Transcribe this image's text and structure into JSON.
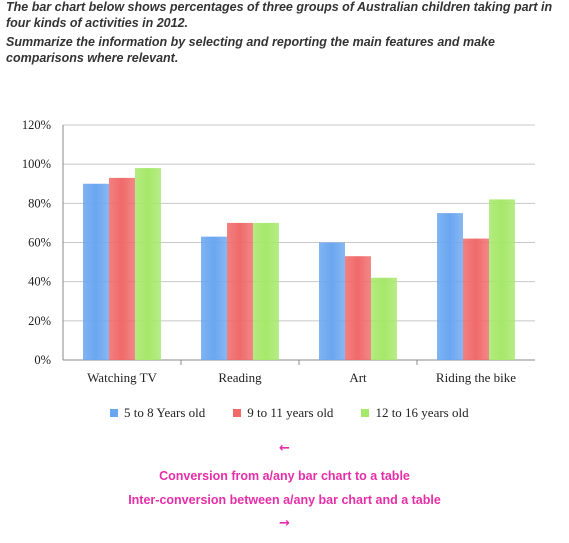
{
  "prompt": {
    "line1": "The bar chart below shows percentages of three groups of Australian children taking part in four kinds of activities in 2012.",
    "line2": "Summarize the information by selecting and reporting the main features and make comparisons where relevant."
  },
  "colors": {
    "series1": "#6aa6f0",
    "series2": "#f06a6a",
    "series3": "#a6e86a",
    "link": "#e62ea8"
  },
  "chart_data": {
    "type": "bar",
    "categories": [
      "Watching TV",
      "Reading",
      "Art",
      "Riding the bike"
    ],
    "series": [
      {
        "name": "5 to 8 Years old",
        "values": [
          90,
          63,
          60,
          75
        ]
      },
      {
        "name": "9 to 11 years old",
        "values": [
          93,
          70,
          53,
          62
        ]
      },
      {
        "name": "12 to 16 years old",
        "values": [
          98,
          70,
          42,
          82
        ]
      }
    ],
    "ylim": [
      0,
      120
    ],
    "yticks": [
      "0%",
      "20%",
      "40%",
      "60%",
      "80%",
      "100%",
      "120%"
    ],
    "grid": true,
    "legend_position": "bottom"
  },
  "nav": {
    "prev_arrow": "←",
    "next_arrow": "→",
    "link1": "Conversion from a/any bar chart to a table",
    "link2": "Inter-conversion between a/any bar chart and a table"
  }
}
